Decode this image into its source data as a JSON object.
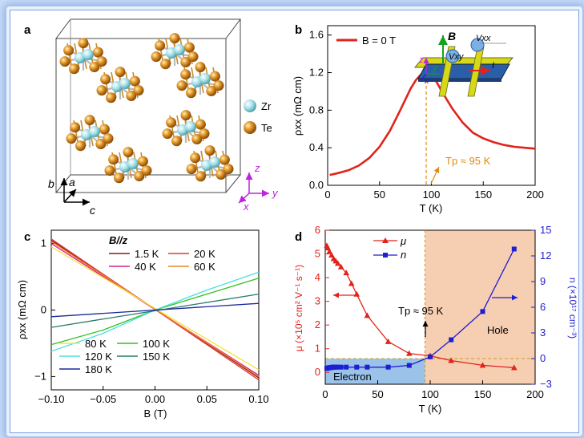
{
  "panels": {
    "a": {
      "label": "a",
      "legend": [
        {
          "name": "Zr",
          "color": "#8fd3dc"
        },
        {
          "name": "Te",
          "color": "#d88a1c"
        }
      ],
      "axes_crystal": {
        "b": "b",
        "a": "a",
        "c": "c"
      },
      "axes_lab": {
        "z": "z",
        "y": "y",
        "x": "x"
      }
    },
    "b": {
      "label": "b",
      "legend": "B = 0 T",
      "annotation": "Tp ≈ 95 K",
      "inset_labels": {
        "B": "B",
        "vxx": "Vxx",
        "vxy": "Vxy",
        "I": "I",
        "z": "z",
        "y": "y",
        "x": "x"
      }
    },
    "c": {
      "label": "c",
      "field_direction": "B//z"
    },
    "d": {
      "label": "d",
      "annotation": "Tp ≈ 95 K",
      "region_left": "Electron",
      "region_right": "Hole"
    }
  },
  "chart_data": [
    {
      "type": "line",
      "panel": "b",
      "xlabel": "T (K)",
      "ylabel": "ρxx (mΩ cm)",
      "xlim": [
        0,
        200
      ],
      "ylim": [
        0,
        1.7
      ],
      "xticks": [
        0,
        50,
        100,
        150,
        200
      ],
      "yticks": [
        0.0,
        0.4,
        0.8,
        1.2,
        1.6
      ],
      "grid": false,
      "series": [
        {
          "name": "B = 0 T",
          "color": "#e2231a",
          "x": [
            2,
            10,
            20,
            30,
            40,
            50,
            60,
            70,
            80,
            85,
            90,
            95,
            100,
            105,
            110,
            120,
            130,
            140,
            150,
            160,
            170,
            180,
            190,
            200
          ],
          "y": [
            0.11,
            0.13,
            0.16,
            0.21,
            0.29,
            0.41,
            0.58,
            0.8,
            1.03,
            1.12,
            1.18,
            1.2,
            1.17,
            1.1,
            1.0,
            0.82,
            0.67,
            0.56,
            0.5,
            0.46,
            0.43,
            0.41,
            0.4,
            0.39
          ]
        }
      ],
      "marker_line": {
        "x": 95
      }
    },
    {
      "type": "line",
      "panel": "c",
      "xlabel": "B (T)",
      "ylabel": "ρxx (mΩ cm)",
      "xlim": [
        -0.1,
        0.1
      ],
      "ylim": [
        -1.2,
        1.2
      ],
      "xticks": [
        -0.1,
        -0.05,
        0.0,
        0.05,
        0.1
      ],
      "xtick_labels": [
        "−0.10",
        "−0.05",
        "0.00",
        "0.05",
        "0.10"
      ],
      "yticks": [
        -1,
        0,
        1
      ],
      "ytick_labels": [
        "−1",
        "0",
        "1"
      ],
      "legend_position": "top-right and bottom-left",
      "series": [
        {
          "name": "1.5 K",
          "color": "#8b1a1a",
          "x": [
            -0.1,
            0.1
          ],
          "y": [
            1.05,
            -1.02
          ]
        },
        {
          "name": "20 K",
          "color": "#e03a3a",
          "x": [
            -0.1,
            0.1
          ],
          "y": [
            1.07,
            -1.05
          ]
        },
        {
          "name": "40 K",
          "color": "#e0208a",
          "x": [
            -0.1,
            0.1
          ],
          "y": [
            1.0,
            -0.98
          ]
        },
        {
          "name": "60 K",
          "color": "#e8892a",
          "x": [
            -0.1,
            0.1
          ],
          "y": [
            1.03,
            -1.0
          ]
        },
        {
          "name": "80 K",
          "color": "#f4e23a",
          "x": [
            -0.1,
            0.1
          ],
          "y": [
            0.95,
            -0.9
          ]
        },
        {
          "name": "100 K",
          "color": "#30c020",
          "x": [
            -0.1,
            -0.05,
            0,
            0.05,
            0.1
          ],
          "y": [
            -0.52,
            -0.3,
            0.0,
            0.24,
            0.48
          ]
        },
        {
          "name": "120 K",
          "color": "#4ae0e0",
          "x": [
            -0.1,
            -0.05,
            0,
            0.05,
            0.1
          ],
          "y": [
            -0.62,
            -0.35,
            0.0,
            0.3,
            0.57
          ]
        },
        {
          "name": "150 K",
          "color": "#2a7a6a",
          "x": [
            -0.1,
            0.1
          ],
          "y": [
            -0.26,
            0.24
          ]
        },
        {
          "name": "180 K",
          "color": "#1a2a9a",
          "x": [
            -0.1,
            0.1
          ],
          "y": [
            -0.1,
            0.1
          ]
        }
      ]
    },
    {
      "type": "line",
      "panel": "d",
      "xlabel": "T (K)",
      "ylabel": "μ (×10⁵ cm² V⁻¹ s⁻¹)",
      "y2label": "n (×10¹⁷ cm⁻³)",
      "xlim": [
        0,
        200
      ],
      "ylim": [
        -0.5,
        6
      ],
      "y2lim": [
        -3,
        15
      ],
      "xticks": [
        0,
        50,
        100,
        150,
        200
      ],
      "yticks": [
        0,
        1,
        2,
        3,
        4,
        5,
        6
      ],
      "y2ticks": [
        -3,
        0,
        3,
        6,
        9,
        12,
        15
      ],
      "series": [
        {
          "name": "μ",
          "axis": "left",
          "color": "#e2231a",
          "marker": "triangle",
          "x": [
            1.5,
            2.5,
            4,
            6,
            8,
            10,
            12,
            15,
            20,
            25,
            30,
            40,
            60,
            80,
            100,
            120,
            150,
            180
          ],
          "y": [
            5.35,
            5.25,
            5.1,
            4.95,
            4.8,
            4.7,
            4.6,
            4.45,
            4.2,
            3.75,
            3.3,
            2.4,
            1.3,
            0.8,
            0.7,
            0.5,
            0.3,
            0.2
          ]
        },
        {
          "name": "n",
          "axis": "right",
          "color": "#1e1ed2",
          "marker": "square",
          "x": [
            1.5,
            2,
            3,
            4,
            5,
            6,
            7,
            8,
            9,
            10,
            12,
            15,
            20,
            30,
            40,
            60,
            80,
            100,
            120,
            150,
            180
          ],
          "y": [
            -1.15,
            -1.1,
            -1.1,
            -1.05,
            -1.05,
            -1.05,
            -1.0,
            -1.0,
            -1.0,
            -1.0,
            -1.0,
            -1.0,
            -1.0,
            -1.0,
            -1.0,
            -1.0,
            -0.8,
            0.2,
            2.2,
            5.5,
            12.8
          ]
        }
      ],
      "marker_line": {
        "x": 95
      },
      "reference_line": {
        "y2": 0
      }
    }
  ]
}
